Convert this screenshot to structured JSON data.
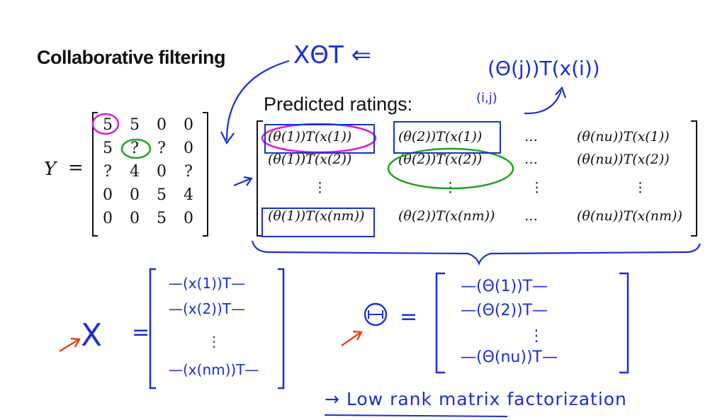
{
  "slide": {
    "title": "Collaborative filtering",
    "predicted_title": "Predicted ratings:",
    "y_label": "Y",
    "equals": "="
  },
  "y_matrix": {
    "rows": [
      [
        "5",
        "5",
        "0",
        "0"
      ],
      [
        "5",
        "?",
        "?",
        "0"
      ],
      [
        "?",
        "4",
        "0",
        "?"
      ],
      [
        "0",
        "0",
        "5",
        "4"
      ],
      [
        "0",
        "0",
        "5",
        "0"
      ]
    ]
  },
  "predicted_matrix": {
    "rows": [
      [
        "(θ(1))T(x(1))",
        "(θ(2))T(x(1))",
        "…",
        "(θ(nu))T(x(1))"
      ],
      [
        "(θ(1))T(x(2))",
        "(θ(2))T(x(2))",
        "…",
        "(θ(nu))T(x(2))"
      ],
      [
        "⋮",
        "⋮",
        "⋮",
        "⋮"
      ],
      [
        "(θ(1))T(x(nm))",
        "(θ(2))T(x(nm))",
        "…",
        "(θ(nu))T(x(nm))"
      ]
    ]
  },
  "handwriting": {
    "top_formula": "XΘT ⇐",
    "top_right_formula": "(Θ(j))T(x(i))",
    "ij_note": "(i,j)",
    "x_label": "X",
    "x_equals": "=",
    "x_rows": [
      "—(x(1))T—",
      "—(x(2))T—",
      "⋮",
      "—(x(nm))T—"
    ],
    "theta_label": "Θ",
    "theta_equals": "=",
    "theta_rows": [
      "—(Θ(1))T—",
      "—(Θ(2))T—",
      "⋮",
      "—(Θ(nu))T—"
    ],
    "footer": "→ Low rank matrix factorization"
  },
  "colors": {
    "ink": "#111111",
    "hand_blue": "#1a2fd0",
    "magenta": "#d81ad8",
    "green": "#1fa31f",
    "arrow_red": "#e8401c"
  }
}
